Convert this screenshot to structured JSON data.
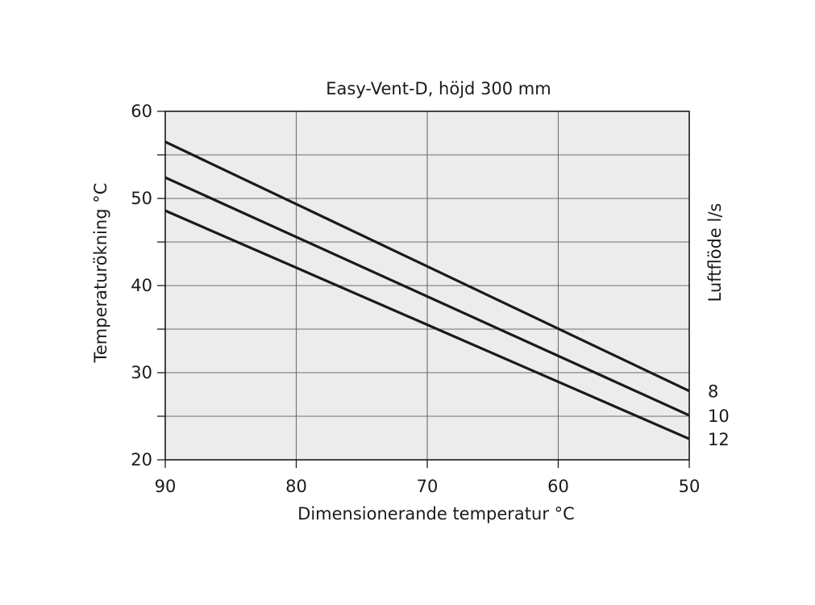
{
  "chart_data": {
    "type": "line",
    "title": "Easy-Vent-D, höjd 300 mm",
    "xlabel": "Dimensionerande temperatur °C",
    "ylabel": "Temperaturökning °C",
    "y2label": "Luftflöde l/s",
    "xlim": [
      90,
      50
    ],
    "ylim": [
      20,
      60
    ],
    "x_ticks": [
      90,
      80,
      70,
      60,
      50
    ],
    "y_ticks": [
      20,
      30,
      40,
      50,
      60
    ],
    "x_gridlines": [
      80,
      70,
      60
    ],
    "y_gridlines": [
      25,
      30,
      35,
      40,
      45,
      50,
      55
    ],
    "grid": true,
    "x_reversed": true,
    "plot_background": "#ececec",
    "line_color": "#1a1a1a",
    "series": [
      {
        "name": "8",
        "x": [
          90,
          50
        ],
        "y": [
          56.5,
          27.9
        ]
      },
      {
        "name": "10",
        "x": [
          90,
          50
        ],
        "y": [
          52.4,
          25.1
        ]
      },
      {
        "name": "12",
        "x": [
          90,
          50
        ],
        "y": [
          48.6,
          22.4
        ]
      }
    ]
  }
}
